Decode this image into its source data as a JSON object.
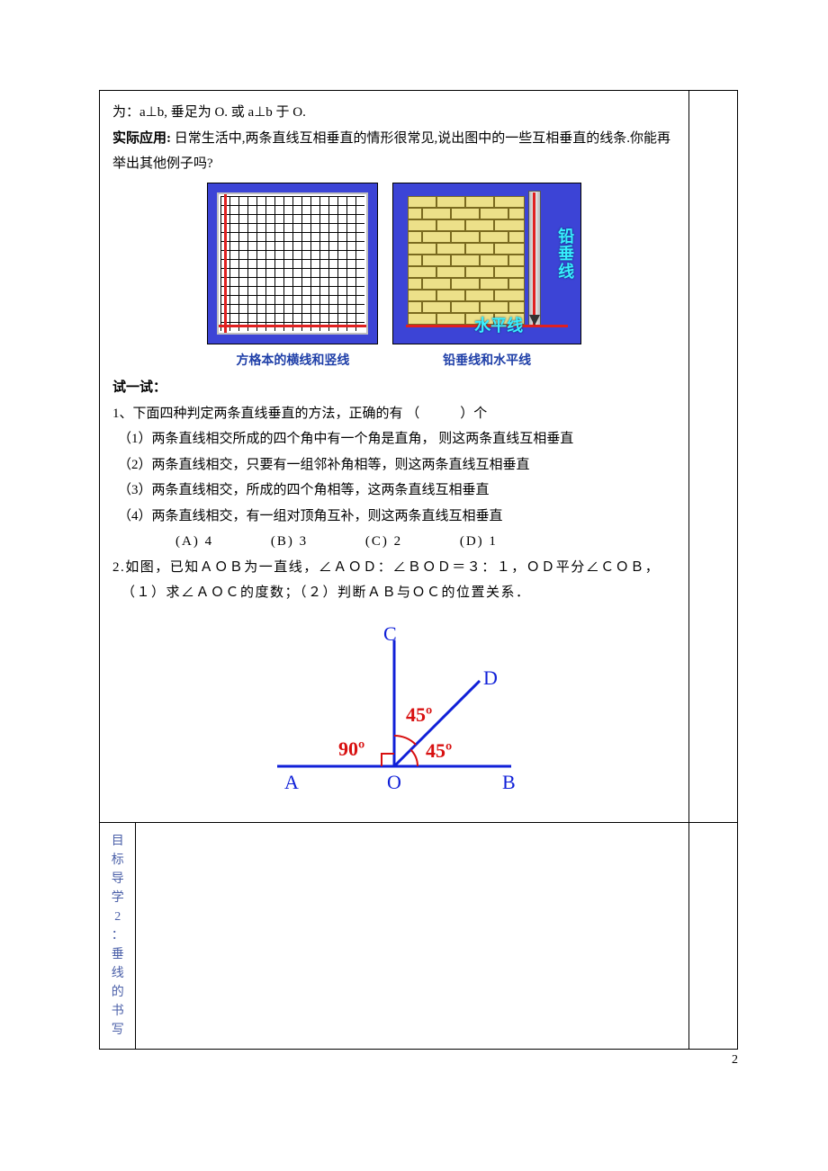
{
  "intro_line": "为：a⊥b, 垂足为 O. 或 a⊥b 于 O.",
  "practical_label": "实际应用:",
  "practical_text": "日常生活中,两条直线互相垂直的情形很常见,说出图中的一些互相垂直的线条.你能再举出其他例子吗?",
  "captions": {
    "grid": "方格本的横线和竖线",
    "plumb": "铅垂线和水平线"
  },
  "plumb_labels": {
    "vertical": "铅垂线",
    "horizontal": "水平线"
  },
  "try_header": "试一试：",
  "q1_stem": "1、下面四种判定两条直线垂直的方法，正确的有 （　　　）个",
  "q1_items": [
    "（1）两条直线相交所成的四个角中有一个角是直角， 则这两条直线互相垂直",
    "（2）两条直线相交，只要有一组邻补角相等，则这两条直线互相垂直",
    "（3）两条直线相交，所成的四个角相等，这两条直线互相垂直",
    "（4）两条直线相交，有一组对顶角互补，则这两条直线互相垂直"
  ],
  "q1_options": {
    "A": "(A)  4",
    "B": "(B)  3",
    "C": "(C)  2",
    "D": "(D)  1"
  },
  "q2_line1": "2.如图，已知ＡＯＢ为一直线，∠ＡＯＤ：∠ＢＯＤ＝３：１，ＯＤ平分∠ＣＯＢ，",
  "q2_line2": "（１）求∠ＡＯＣ的度数；（２）判断ＡＢ与ＯＣ的位置关系．",
  "diagram": {
    "points": {
      "A": "A",
      "B": "B",
      "C": "C",
      "D": "D",
      "O": "O"
    },
    "angles": {
      "aoc": "90º",
      "cod": "45º",
      "dob": "45º"
    },
    "colors": {
      "line": "#1020d8",
      "angle_text": "#d81010",
      "arc": "#d81010",
      "point_label": "#1020d8"
    },
    "font_size_label": 22,
    "font_size_angle": 22,
    "line_width": 3
  },
  "sidebar_label": [
    "目",
    "标",
    "导",
    "学",
    "2",
    "：",
    "垂",
    "线",
    "的",
    "书",
    "写"
  ],
  "sidebar_color": "#4a5fa8",
  "page_number": "2",
  "brick_colors": {
    "fill": "#ece089",
    "border": "#7a6a1f"
  }
}
